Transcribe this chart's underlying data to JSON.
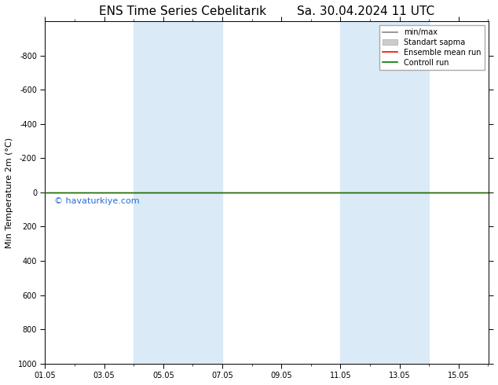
{
  "title": "ENS Time Series Cebelitarık        Sa. 30.04.2024 11 UTC",
  "ylabel": "Min Temperature 2m (°C)",
  "watermark": "© havaturkiye.com",
  "ylim_top": -1000,
  "ylim_bottom": 1000,
  "yticks": [
    -800,
    -600,
    -400,
    -200,
    0,
    200,
    400,
    600,
    800,
    1000
  ],
  "total_days": 15,
  "x_tick_positions": [
    0,
    2,
    4,
    6,
    8,
    10,
    12,
    14
  ],
  "x_tick_labels": [
    "01.05",
    "03.05",
    "05.05",
    "07.05",
    "09.05",
    "11.05",
    "13.05",
    "15.05"
  ],
  "shaded_regions": [
    [
      3.0,
      4.0
    ],
    [
      4.0,
      6.0
    ],
    [
      10.0,
      11.5
    ],
    [
      11.5,
      13.0
    ]
  ],
  "shaded_color": "#daeaf7",
  "ensemble_mean_color": "#ff0000",
  "control_run_color": "#007700",
  "minmax_color": "#888888",
  "stddev_color": "#cccccc",
  "legend_entries": [
    "min/max",
    "Standart sapma",
    "Ensemble mean run",
    "Controll run"
  ],
  "background_color": "#ffffff",
  "watermark_color": "#0055cc",
  "font_size_title": 11,
  "font_size_axis": 8,
  "font_size_ticks": 7,
  "font_size_legend": 7,
  "font_size_watermark": 8,
  "line_y": 0
}
